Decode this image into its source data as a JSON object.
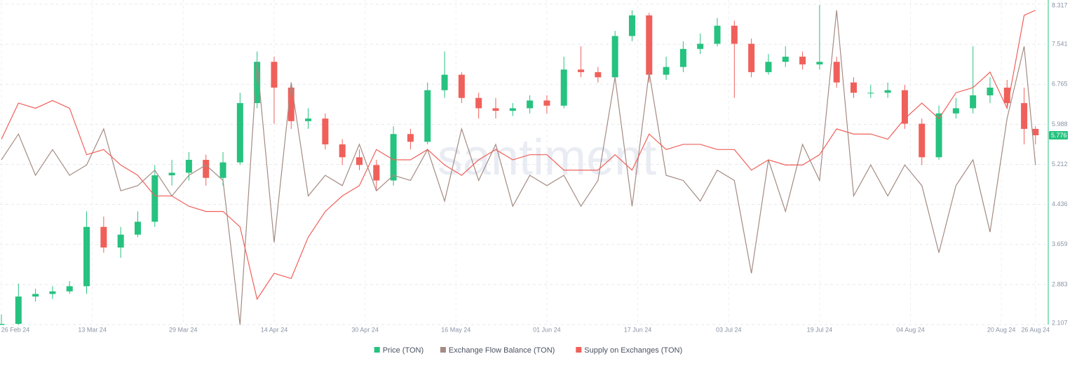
{
  "chart_data": {
    "type": "candlestick",
    "watermark": "santiment",
    "x": [
      0,
      3,
      6,
      9,
      12,
      15,
      18,
      21,
      24,
      27,
      30,
      33,
      36,
      39,
      42,
      45,
      48,
      51,
      54,
      57,
      60,
      63,
      66,
      69,
      72,
      75,
      78,
      81,
      84,
      87,
      90,
      93,
      96,
      99,
      102,
      105,
      108,
      111,
      114,
      117,
      120,
      123,
      126,
      129,
      132,
      135,
      138,
      141,
      144,
      147,
      150,
      153,
      156,
      159,
      162,
      165,
      168,
      171,
      174,
      177,
      180,
      182
    ],
    "xlim": [
      0,
      184
    ],
    "xticks": [
      {
        "value": 0,
        "label": "26 Feb 24"
      },
      {
        "value": 16,
        "label": "13 Mar 24"
      },
      {
        "value": 32,
        "label": "29 Mar 24"
      },
      {
        "value": 48,
        "label": "14 Apr 24"
      },
      {
        "value": 64,
        "label": "30 Apr 24"
      },
      {
        "value": 80,
        "label": "16 May 24"
      },
      {
        "value": 96,
        "label": "01 Jun 24"
      },
      {
        "value": 112,
        "label": "17 Jun 24"
      },
      {
        "value": 128,
        "label": "03 Jul 24"
      },
      {
        "value": 144,
        "label": "19 Jul 24"
      },
      {
        "value": 160,
        "label": "04 Aug 24"
      },
      {
        "value": 176,
        "label": "20 Aug 24"
      },
      {
        "value": 182,
        "label": "26 Aug 24"
      }
    ],
    "ylim": [
      2.107,
      8.317
    ],
    "yticks": [
      2.107,
      2.883,
      3.659,
      4.436,
      5.212,
      5.988,
      6.765,
      7.541,
      8.317
    ],
    "grid": true,
    "legend": "bottom",
    "series": [
      {
        "name": "Price (TON)",
        "type": "candlestick",
        "color": "#26c27f",
        "down_color": "#f0605a",
        "open": [
          2.1,
          2.12,
          2.65,
          2.7,
          2.75,
          2.85,
          4.0,
          3.6,
          3.85,
          4.1,
          5.0,
          5.05,
          5.3,
          4.95,
          5.25,
          6.4,
          7.2,
          6.7,
          6.05,
          6.1,
          5.6,
          5.35,
          5.2,
          4.9,
          5.8,
          5.65,
          6.65,
          6.95,
          6.5,
          6.3,
          6.25,
          6.3,
          6.45,
          6.35,
          7.05,
          7.0,
          6.9,
          7.7,
          8.1,
          6.95,
          7.1,
          7.45,
          7.55,
          7.9,
          7.55,
          7.0,
          7.2,
          7.3,
          7.15,
          7.2,
          6.8,
          6.6,
          6.6,
          6.65,
          6.0,
          5.35,
          6.2,
          6.3,
          6.55,
          6.7,
          6.4,
          5.9
        ],
        "high": [
          2.3,
          2.9,
          2.8,
          2.85,
          2.95,
          4.3,
          4.2,
          4.0,
          4.3,
          5.2,
          5.3,
          5.45,
          5.4,
          5.45,
          6.6,
          7.4,
          7.3,
          6.8,
          6.3,
          6.2,
          5.7,
          5.5,
          5.3,
          5.95,
          5.9,
          6.8,
          7.4,
          7.0,
          6.6,
          6.5,
          6.4,
          6.55,
          6.55,
          7.3,
          7.5,
          7.1,
          7.8,
          8.2,
          8.15,
          7.3,
          7.6,
          7.75,
          8.05,
          8.0,
          7.65,
          7.35,
          7.5,
          7.4,
          8.3,
          7.3,
          6.9,
          6.75,
          6.8,
          6.75,
          6.1,
          6.35,
          6.5,
          7.5,
          6.9,
          6.85,
          6.7,
          5.95
        ],
        "low": [
          2.1,
          2.1,
          2.55,
          2.6,
          2.7,
          2.7,
          3.5,
          3.4,
          3.8,
          4.0,
          4.8,
          4.9,
          4.8,
          4.8,
          5.2,
          6.3,
          6.0,
          5.9,
          5.9,
          5.5,
          5.2,
          5.1,
          4.7,
          4.8,
          5.5,
          5.6,
          6.5,
          6.4,
          6.1,
          6.1,
          6.15,
          6.2,
          6.2,
          6.3,
          6.9,
          6.8,
          6.85,
          7.6,
          6.8,
          6.85,
          7.0,
          7.35,
          7.5,
          6.5,
          6.9,
          6.95,
          7.1,
          7.05,
          7.05,
          6.7,
          6.5,
          6.5,
          6.5,
          5.9,
          5.2,
          5.3,
          6.1,
          6.2,
          6.4,
          6.3,
          5.6,
          5.6
        ],
        "close": [
          2.12,
          2.65,
          2.7,
          2.75,
          2.85,
          4.0,
          3.6,
          3.85,
          4.1,
          5.0,
          5.05,
          5.3,
          4.95,
          5.25,
          6.4,
          7.2,
          6.7,
          6.05,
          6.1,
          5.6,
          5.35,
          5.2,
          4.9,
          5.8,
          5.65,
          6.65,
          6.95,
          6.5,
          6.3,
          6.25,
          6.3,
          6.45,
          6.35,
          7.05,
          7.0,
          6.9,
          7.7,
          8.1,
          6.95,
          7.1,
          7.45,
          7.55,
          7.9,
          7.55,
          7.0,
          7.2,
          7.3,
          7.15,
          7.2,
          6.8,
          6.6,
          6.6,
          6.65,
          6.0,
          5.35,
          6.2,
          6.3,
          6.55,
          6.7,
          6.4,
          5.9,
          5.776
        ]
      },
      {
        "name": "Exchange Flow Balance (TON)",
        "type": "line",
        "color": "#a48b82",
        "values": [
          5.3,
          5.8,
          5.0,
          5.5,
          5.0,
          5.2,
          5.9,
          4.7,
          4.8,
          5.1,
          4.6,
          5.0,
          5.2,
          4.9,
          2.1,
          7.2,
          3.7,
          6.8,
          4.6,
          5.0,
          4.8,
          5.6,
          4.7,
          5.0,
          4.9,
          5.5,
          4.5,
          5.9,
          4.9,
          5.6,
          4.4,
          5.0,
          4.8,
          5.0,
          4.4,
          4.9,
          6.9,
          4.4,
          7.0,
          5.0,
          4.9,
          4.5,
          5.1,
          4.9,
          3.1,
          5.3,
          4.3,
          5.6,
          4.9,
          8.2,
          4.6,
          5.2,
          4.6,
          5.2,
          4.8,
          3.5,
          4.8,
          5.3,
          3.9,
          6.1,
          7.5,
          5.2
        ]
      },
      {
        "name": "Supply on Exchanges (TON)",
        "type": "line",
        "color": "#f0605a",
        "values": [
          5.7,
          6.4,
          6.3,
          6.45,
          6.3,
          5.4,
          5.5,
          5.2,
          5.0,
          4.6,
          4.6,
          4.4,
          4.3,
          4.3,
          4.0,
          2.6,
          3.1,
          3.0,
          3.8,
          4.3,
          4.6,
          4.8,
          5.5,
          5.3,
          5.3,
          5.5,
          5.2,
          5.0,
          5.3,
          5.5,
          5.3,
          5.4,
          5.4,
          5.1,
          5.1,
          5.1,
          5.4,
          5.1,
          5.8,
          5.5,
          5.6,
          5.6,
          5.5,
          5.5,
          5.1,
          5.3,
          5.2,
          5.2,
          5.4,
          5.9,
          5.8,
          5.8,
          5.7,
          6.1,
          6.4,
          6.1,
          6.6,
          6.7,
          7.0,
          6.3,
          8.1,
          8.2
        ]
      }
    ]
  }
}
